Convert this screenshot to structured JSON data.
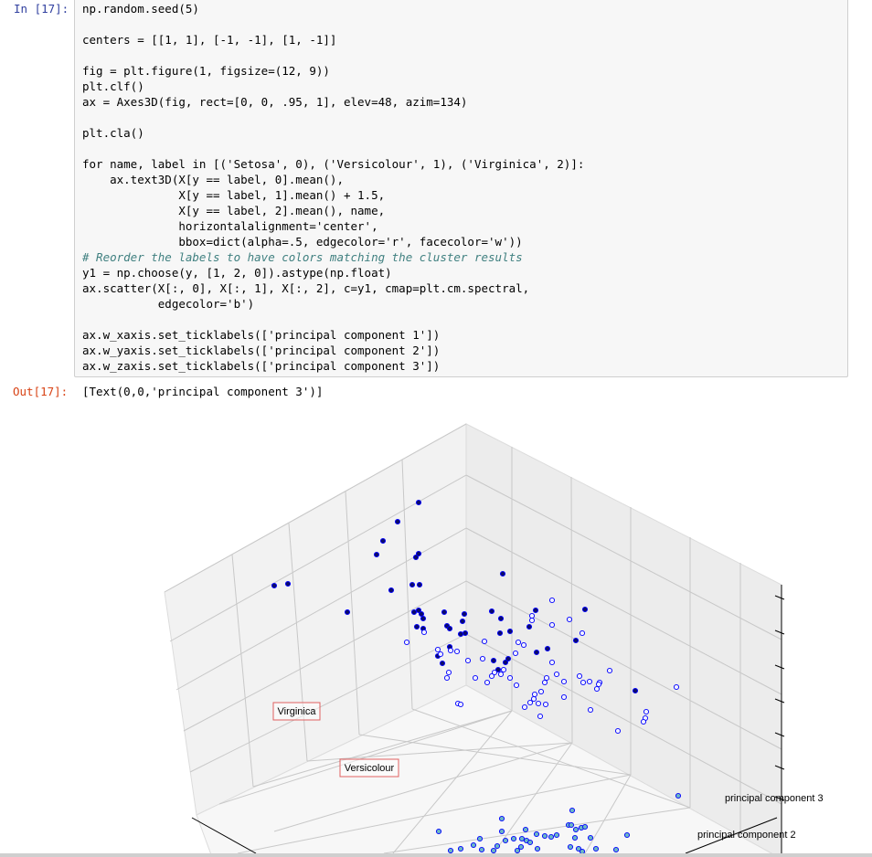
{
  "cell": {
    "in_prompt": "In [17]:",
    "out_prompt": "Out[17]:",
    "code_lines": [
      "np.random.seed(5)",
      "",
      "centers = [[1, 1], [-1, -1], [1, -1]]",
      "",
      "fig = plt.figure(1, figsize=(12, 9))",
      "plt.clf()",
      "ax = Axes3D(fig, rect=[0, 0, .95, 1], elev=48, azim=134)",
      "",
      "plt.cla()",
      "",
      "for name, label in [('Setosa', 0), ('Versicolour', 1), ('Virginica', 2)]:",
      "    ax.text3D(X[y == label, 0].mean(),",
      "              X[y == label, 1].mean() + 1.5,",
      "              X[y == label, 2].mean(), name,",
      "              horizontalalignment='center',",
      "              bbox=dict(alpha=.5, edgecolor='r', facecolor='w'))",
      "# Reorder the labels to have colors matching the cluster results",
      "y1 = np.choose(y, [1, 2, 0]).astype(np.float)",
      "ax.scatter(X[:, 0], X[:, 1], X[:, 2], c=y1, cmap=plt.cm.spectral,",
      "           edgecolor='b')",
      "",
      "ax.w_xaxis.set_ticklabels(['principal component 1'])",
      "ax.w_yaxis.set_ticklabels(['principal component 2'])",
      "ax.w_zaxis.set_ticklabels(['principal component 3'])"
    ],
    "output": "[Text(0,0,'principal component 3')]"
  },
  "chart_data": {
    "type": "scatter",
    "projection": "3d",
    "elev": 48,
    "azim": 134,
    "grid": true,
    "text_labels": [
      "Virginica",
      "Versicolour"
    ],
    "tick_labels": {
      "y": "principal component 2",
      "z": "principal component 3"
    },
    "series": [
      {
        "color": "#0b0b6b",
        "edgecolor": "#0000ff",
        "points": [
          [
            458,
            110
          ],
          [
            435,
            131
          ],
          [
            419,
            152
          ],
          [
            458,
            166
          ],
          [
            455,
            170
          ],
          [
            412,
            167
          ],
          [
            300,
            201
          ],
          [
            315,
            199
          ],
          [
            451,
            200
          ],
          [
            459,
            200
          ],
          [
            428,
            206
          ],
          [
            550,
            188
          ],
          [
            380,
            230
          ],
          [
            453,
            230
          ],
          [
            458,
            228
          ],
          [
            461,
            232
          ],
          [
            486,
            230
          ],
          [
            508,
            232
          ],
          [
            538,
            229
          ],
          [
            586,
            228
          ],
          [
            640,
            227
          ],
          [
            463,
            237
          ],
          [
            506,
            240
          ],
          [
            489,
            245
          ],
          [
            456,
            246
          ],
          [
            463,
            248
          ],
          [
            548,
            237
          ],
          [
            504,
            254
          ],
          [
            509,
            253
          ],
          [
            492,
            248
          ],
          [
            558,
            251
          ],
          [
            579,
            246
          ],
          [
            547,
            253
          ],
          [
            630,
            261
          ],
          [
            492,
            268
          ],
          [
            479,
            278
          ],
          [
            587,
            274
          ],
          [
            599,
            270
          ],
          [
            484,
            286
          ],
          [
            540,
            283
          ],
          [
            553,
            285
          ],
          [
            545,
            293
          ],
          [
            695,
            316
          ],
          [
            556,
            281
          ]
        ]
      },
      {
        "color": "#f0f0ff",
        "edgecolor": "#0000ff",
        "points": [
          [
            582,
            239
          ],
          [
            582,
            234
          ],
          [
            604,
            217
          ],
          [
            604,
            244
          ],
          [
            623,
            238
          ],
          [
            637,
            253
          ],
          [
            464,
            252
          ],
          [
            445,
            263
          ],
          [
            479,
            271
          ],
          [
            500,
            273
          ],
          [
            530,
            262
          ],
          [
            528,
            281
          ],
          [
            512,
            283
          ],
          [
            482,
            276
          ],
          [
            489,
            302
          ],
          [
            491,
            296
          ],
          [
            501,
            330
          ],
          [
            567,
            263
          ],
          [
            573,
            266
          ],
          [
            564,
            275
          ],
          [
            558,
            302
          ],
          [
            533,
            307
          ],
          [
            541,
            296
          ],
          [
            538,
            300
          ],
          [
            551,
            293
          ],
          [
            548,
            298
          ],
          [
            565,
            310
          ],
          [
            604,
            285
          ],
          [
            609,
            298
          ],
          [
            598,
            302
          ],
          [
            596,
            307
          ],
          [
            592,
            317
          ],
          [
            585,
            320
          ],
          [
            580,
            329
          ],
          [
            574,
            334
          ],
          [
            591,
            344
          ],
          [
            589,
            330
          ],
          [
            617,
            323
          ],
          [
            617,
            306
          ],
          [
            597,
            331
          ],
          [
            667,
            294
          ],
          [
            634,
            300
          ],
          [
            638,
            307
          ],
          [
            645,
            306
          ],
          [
            656,
            307
          ],
          [
            655,
            309
          ],
          [
            653,
            314
          ],
          [
            740,
            312
          ],
          [
            646,
            337
          ],
          [
            707,
            339
          ],
          [
            706,
            346
          ],
          [
            704,
            350
          ],
          [
            676,
            360
          ],
          [
            584,
            325
          ],
          [
            493,
            272
          ],
          [
            504,
            331
          ],
          [
            520,
            302
          ]
        ]
      },
      {
        "color": "#6cb6c4",
        "edgecolor": "#0000ff",
        "points": [
          [
            742,
            431
          ],
          [
            626,
            447
          ],
          [
            549,
            456
          ],
          [
            622,
            463
          ],
          [
            625,
            463
          ],
          [
            630,
            468
          ],
          [
            636,
            466
          ],
          [
            640,
            465
          ],
          [
            549,
            470
          ],
          [
            553,
            480
          ],
          [
            480,
            470
          ],
          [
            562,
            478
          ],
          [
            571,
            478
          ],
          [
            576,
            480
          ],
          [
            587,
            473
          ],
          [
            596,
            475
          ],
          [
            603,
            476
          ],
          [
            609,
            474
          ],
          [
            580,
            482
          ],
          [
            570,
            487
          ],
          [
            525,
            478
          ],
          [
            518,
            485
          ],
          [
            504,
            489
          ],
          [
            527,
            490
          ],
          [
            493,
            491
          ],
          [
            540,
            491
          ],
          [
            588,
            489
          ],
          [
            566,
            491
          ],
          [
            629,
            477
          ],
          [
            646,
            477
          ],
          [
            652,
            489
          ],
          [
            633,
            489
          ],
          [
            624,
            487
          ],
          [
            637,
            492
          ],
          [
            686,
            474
          ],
          [
            674,
            490
          ],
          [
            575,
            468
          ],
          [
            544,
            486
          ]
        ]
      }
    ]
  }
}
